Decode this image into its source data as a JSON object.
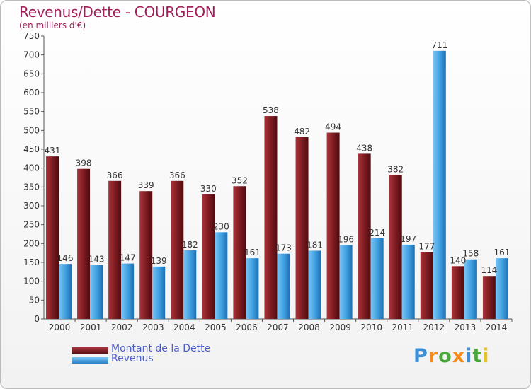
{
  "chart_data": {
    "type": "bar",
    "title": "Revenus/Dette - COURGEON",
    "subtitle": "(en milliers d'€)",
    "categories": [
      "2000",
      "2001",
      "2002",
      "2003",
      "2004",
      "2005",
      "2006",
      "2007",
      "2008",
      "2009",
      "2010",
      "2011",
      "2012",
      "2013",
      "2014"
    ],
    "series": [
      {
        "name": "Montant de la Dette",
        "color": "#7a1a1f",
        "values": [
          431,
          398,
          366,
          339,
          366,
          330,
          352,
          538,
          482,
          494,
          438,
          382,
          177,
          140,
          114
        ]
      },
      {
        "name": "Revenus",
        "color": "#3d9ee0",
        "values": [
          146,
          143,
          147,
          139,
          182,
          230,
          161,
          173,
          181,
          196,
          214,
          197,
          711,
          158,
          161
        ]
      }
    ],
    "ylim": [
      0,
      750
    ],
    "yticks": [
      0,
      50,
      100,
      150,
      200,
      250,
      300,
      350,
      400,
      450,
      500,
      550,
      600,
      650,
      700,
      750
    ],
    "grid": false,
    "legend_position": "bottom-left"
  },
  "logo": {
    "letters": [
      {
        "ch": "P",
        "color": "#3b8fd6"
      },
      {
        "ch": "r",
        "color": "#f28c1e"
      },
      {
        "ch": "o",
        "color": "#4aa83c"
      },
      {
        "ch": "x",
        "color": "#f28c1e"
      },
      {
        "ch": "i",
        "color": "#3b8fd6"
      },
      {
        "ch": "t",
        "color": "#4aa83c"
      },
      {
        "ch": "i",
        "color": "#e8c41e"
      }
    ]
  }
}
